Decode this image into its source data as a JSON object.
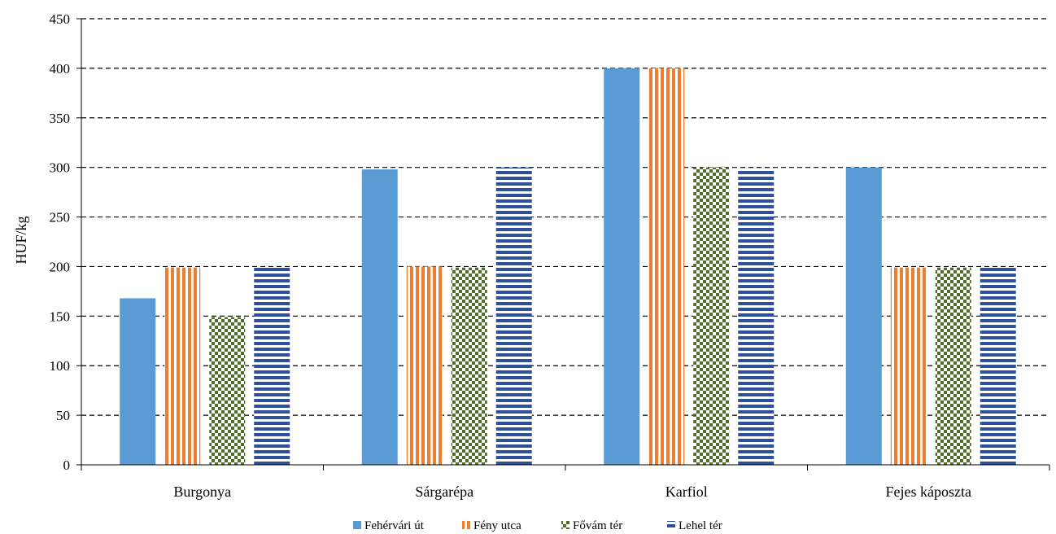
{
  "chart_data": {
    "type": "bar",
    "title": "",
    "xlabel": "",
    "ylabel": "HUF/kg",
    "ylim": [
      0,
      450
    ],
    "yticks": [
      0,
      50,
      100,
      150,
      200,
      250,
      300,
      350,
      400,
      450
    ],
    "grid": "horizontal dashed",
    "legend_position": "bottom",
    "categories": [
      "Burgonya",
      "Sárgarépa",
      "Karfiol",
      "Fejes káposzta"
    ],
    "series": [
      {
        "name": "Fehérvári út",
        "color": "#5b9bd5",
        "pattern": "solid",
        "values": [
          168,
          298,
          400,
          300
        ]
      },
      {
        "name": "Fény utca",
        "color": "#ed7d31",
        "pattern": "vertical-stripes",
        "values": [
          199,
          200,
          400,
          199
        ]
      },
      {
        "name": "Fővám tér",
        "color": "#4e6e2a",
        "pattern": "checker",
        "values": [
          149,
          199,
          300,
          199
        ]
      },
      {
        "name": "Lehel tér",
        "color": "#2e4f9a",
        "pattern": "horizontal-stripes",
        "values": [
          199,
          300,
          299,
          199
        ]
      }
    ]
  }
}
